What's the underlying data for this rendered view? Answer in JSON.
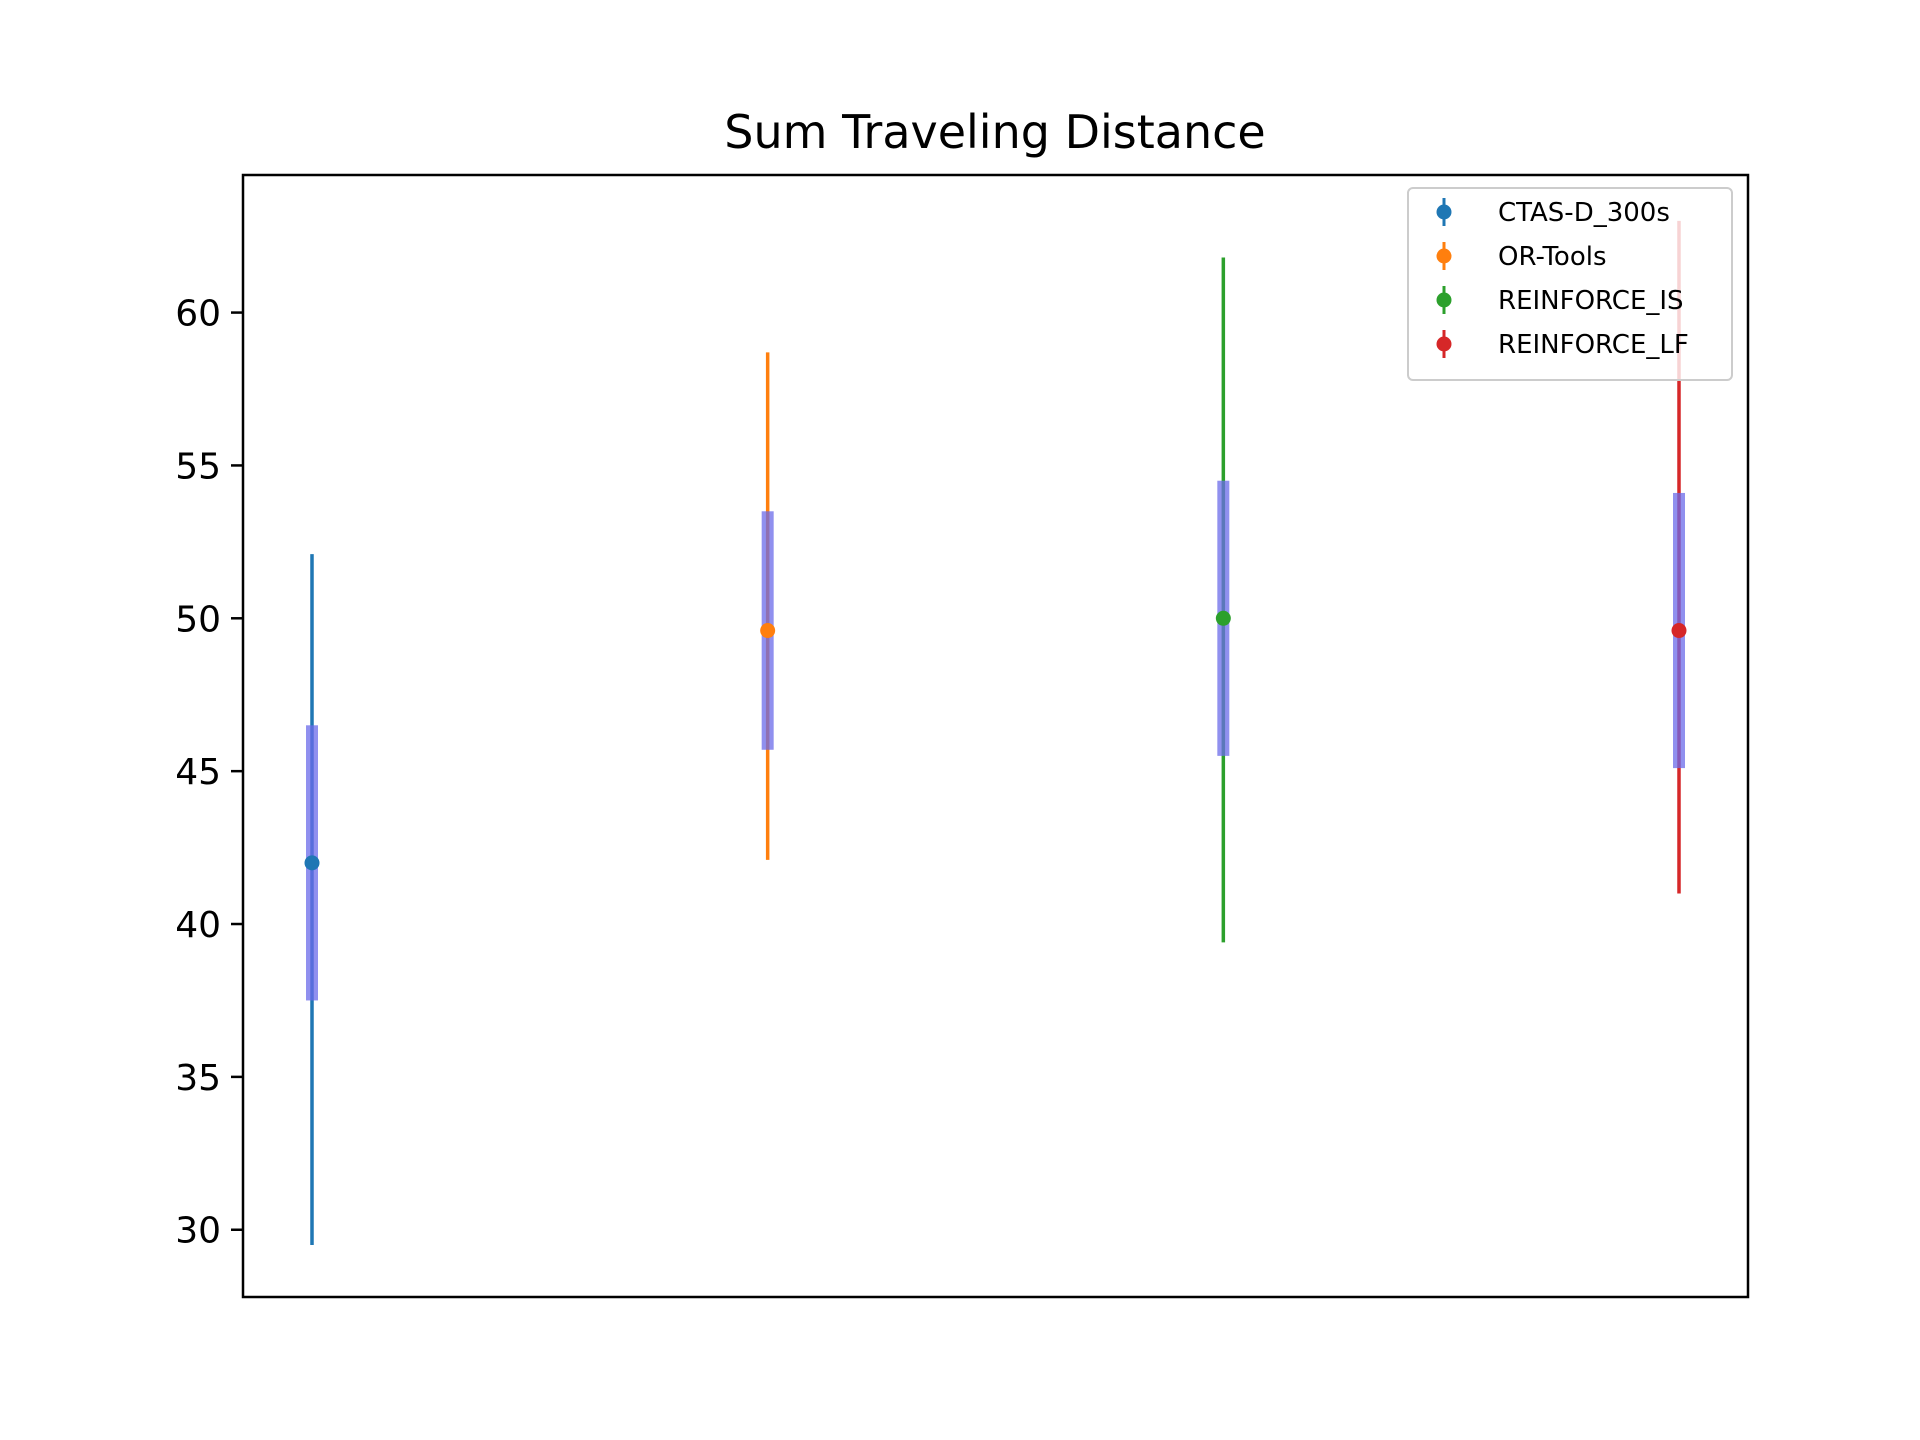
{
  "chart_data": {
    "type": "scatter",
    "title": "Sum Traveling Distance",
    "xlabel": "",
    "ylabel": "",
    "ylim": [
      27.8,
      64.5
    ],
    "yticks": [
      30,
      35,
      40,
      45,
      50,
      55,
      60
    ],
    "grid": false,
    "legend_position": "top-right",
    "band_color": "#6b6bea",
    "series": [
      {
        "name": "CTAS-D_300s",
        "color": "#1f77b4",
        "mean": 42.0,
        "min": 29.5,
        "max": 52.1,
        "band_low": 37.5,
        "band_high": 46.5
      },
      {
        "name": "OR-Tools",
        "color": "#ff7f0e",
        "mean": 49.6,
        "min": 42.1,
        "max": 58.7,
        "band_low": 45.7,
        "band_high": 53.5
      },
      {
        "name": "REINFORCE_IS",
        "color": "#2ca02c",
        "mean": 50.0,
        "min": 39.4,
        "max": 61.8,
        "band_low": 45.5,
        "band_high": 54.5
      },
      {
        "name": "REINFORCE_LF",
        "color": "#d62728",
        "mean": 49.6,
        "min": 41.0,
        "max": 63.0,
        "band_low": 45.1,
        "band_high": 54.1
      }
    ]
  }
}
